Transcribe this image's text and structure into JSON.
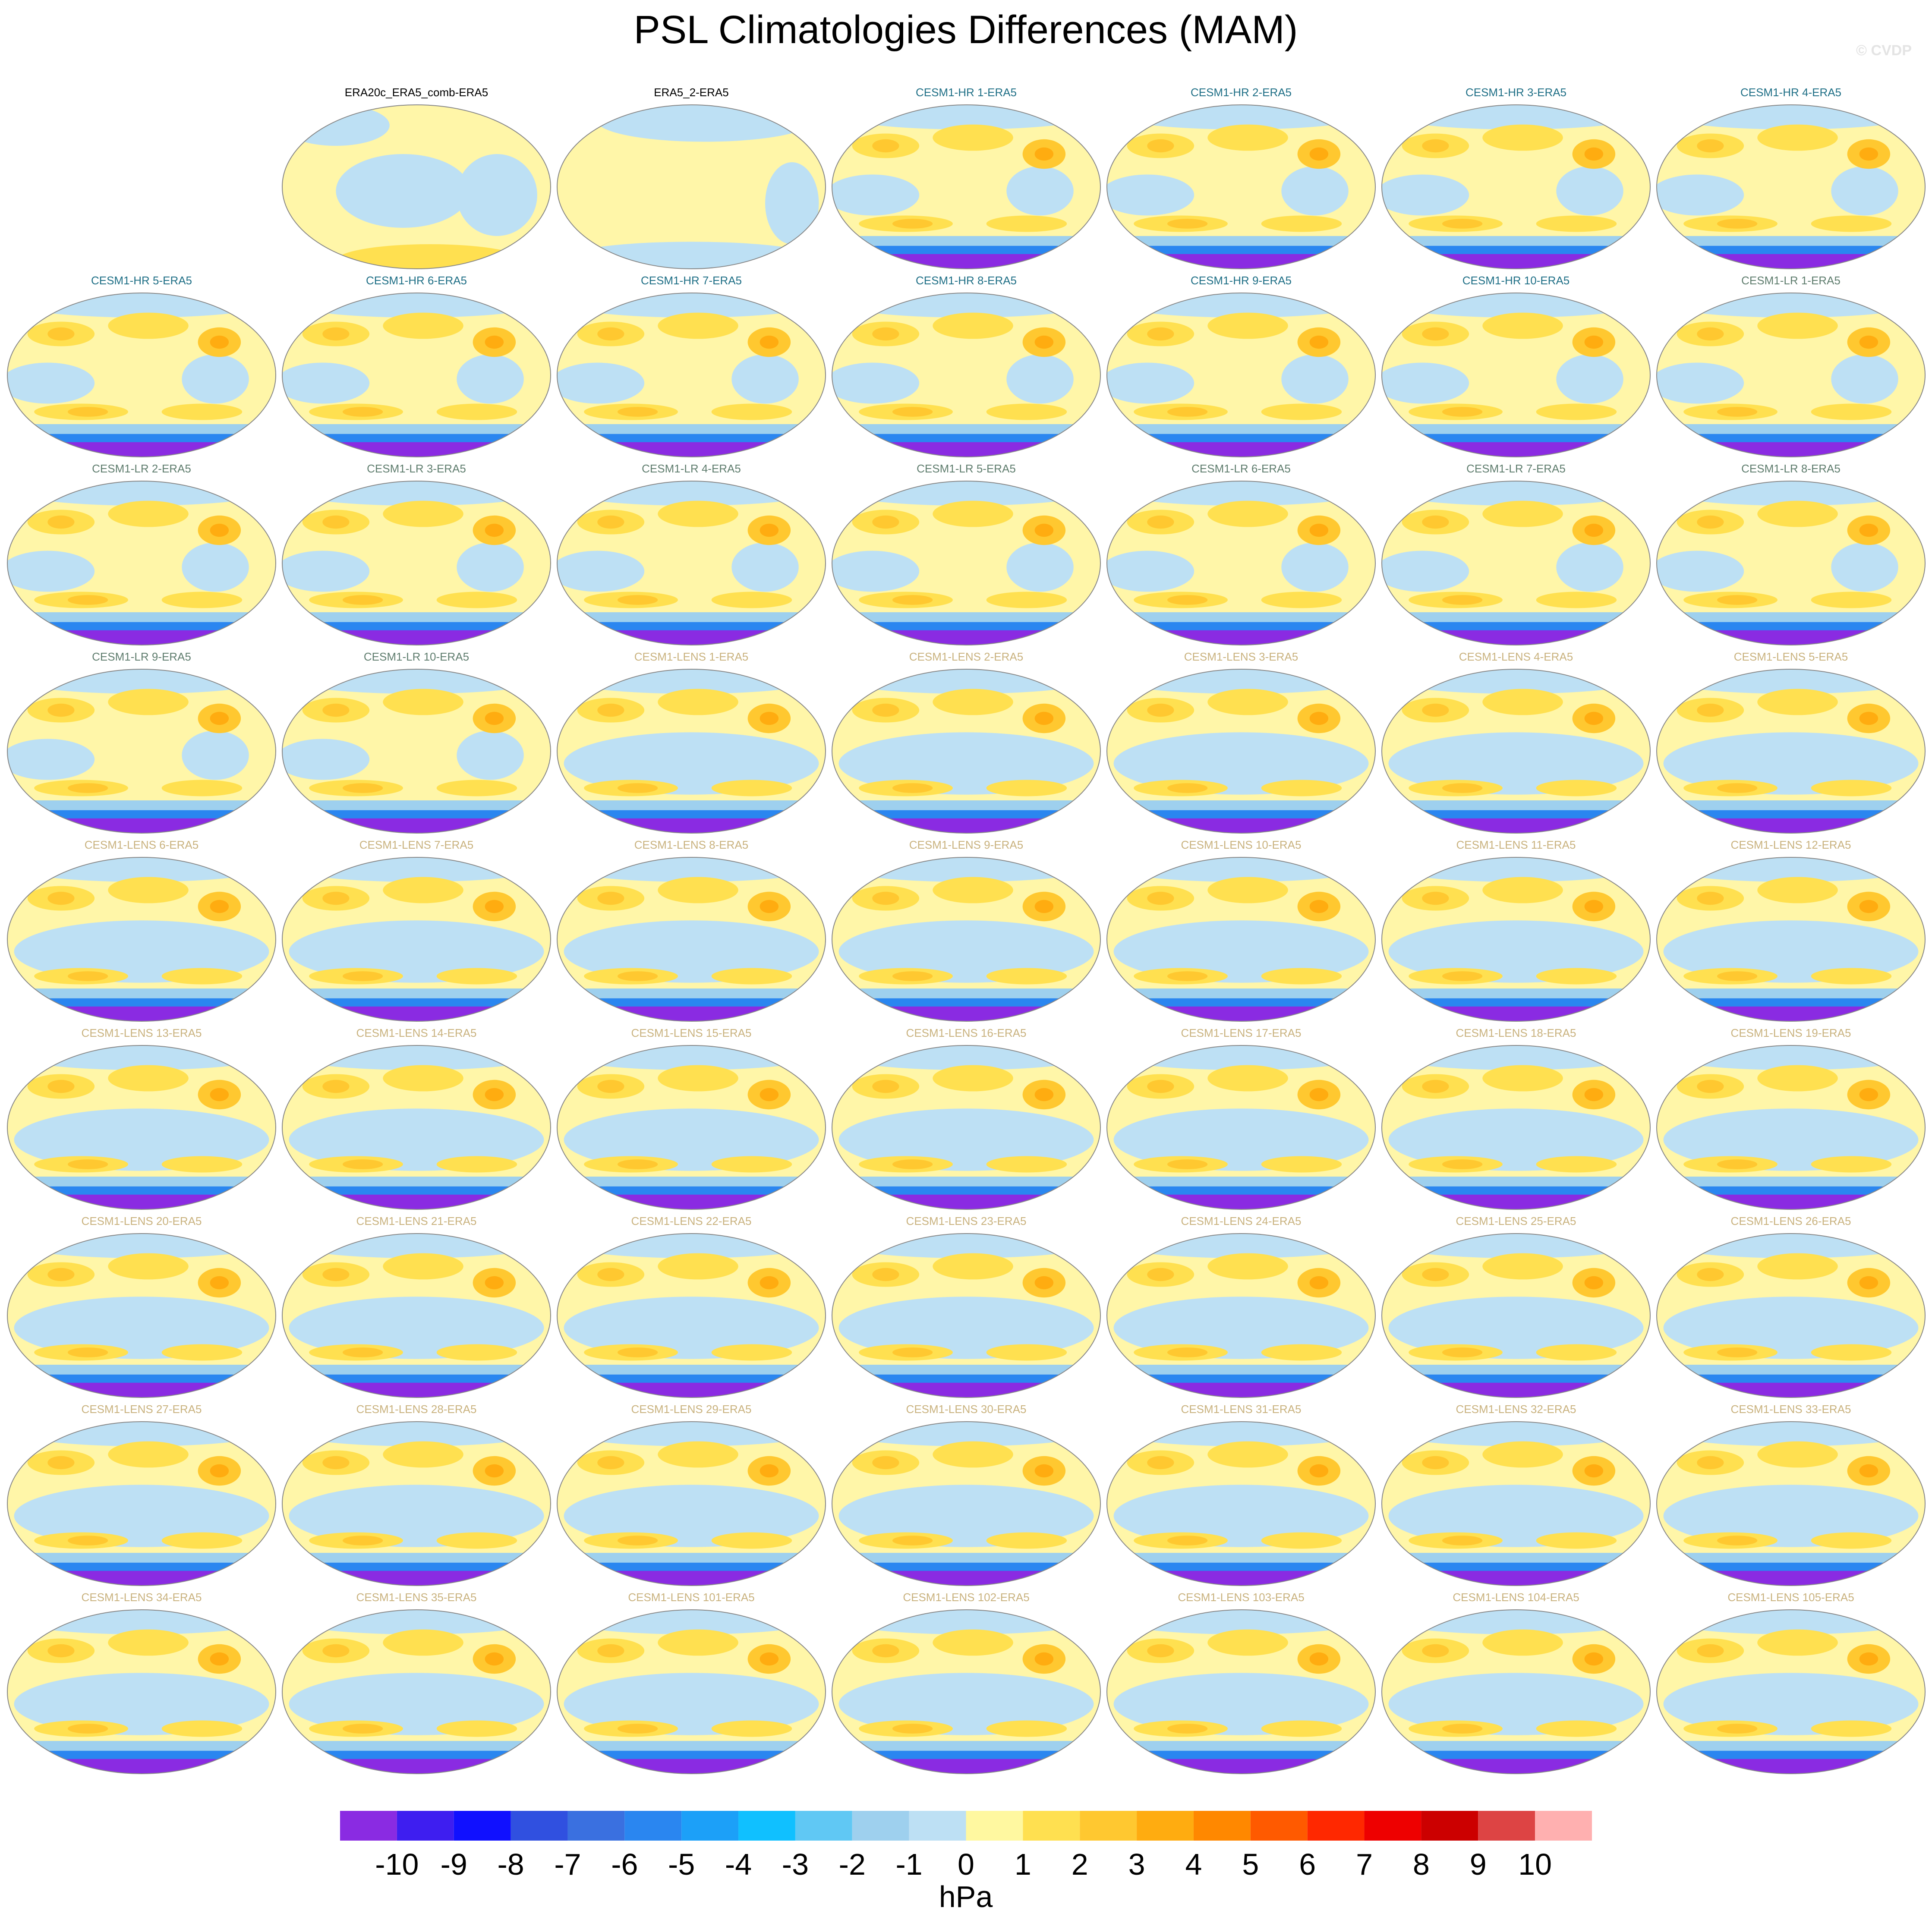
{
  "chart_data": {
    "type": "map_panels",
    "title": "PSL Climatologies Differences (MAM)",
    "watermark": "© CVDP",
    "panels": [
      {
        "title": "ERA20c_ERA5_comb-ERA5",
        "color": "#000000"
      },
      {
        "title": "ERA5_2-ERA5",
        "color": "#000000"
      },
      {
        "title": "CESM1-HR 1-ERA5",
        "color": "#1f6f86"
      },
      {
        "title": "CESM1-HR 2-ERA5",
        "color": "#1f6f86"
      },
      {
        "title": "CESM1-HR 3-ERA5",
        "color": "#1f6f86"
      },
      {
        "title": "CESM1-HR 4-ERA5",
        "color": "#1f6f86"
      },
      {
        "title": "CESM1-HR 5-ERA5",
        "color": "#1f6f86"
      },
      {
        "title": "CESM1-HR 6-ERA5",
        "color": "#1f6f86"
      },
      {
        "title": "CESM1-HR 7-ERA5",
        "color": "#1f6f86"
      },
      {
        "title": "CESM1-HR 8-ERA5",
        "color": "#1f6f86"
      },
      {
        "title": "CESM1-HR 9-ERA5",
        "color": "#1f6f86"
      },
      {
        "title": "CESM1-HR 10-ERA5",
        "color": "#1f6f86"
      },
      {
        "title": "CESM1-LR 1-ERA5",
        "color": "#5f7d6e"
      },
      {
        "title": "CESM1-LR 2-ERA5",
        "color": "#5f7d6e"
      },
      {
        "title": "CESM1-LR 3-ERA5",
        "color": "#5f7d6e"
      },
      {
        "title": "CESM1-LR 4-ERA5",
        "color": "#5f7d6e"
      },
      {
        "title": "CESM1-LR 5-ERA5",
        "color": "#5f7d6e"
      },
      {
        "title": "CESM1-LR 6-ERA5",
        "color": "#5f7d6e"
      },
      {
        "title": "CESM1-LR 7-ERA5",
        "color": "#5f7d6e"
      },
      {
        "title": "CESM1-LR 8-ERA5",
        "color": "#5f7d6e"
      },
      {
        "title": "CESM1-LR 9-ERA5",
        "color": "#5f7d6e"
      },
      {
        "title": "CESM1-LR 10-ERA5",
        "color": "#5f7d6e"
      },
      {
        "title": "CESM1-LENS 1-ERA5",
        "color": "#c9b27e"
      },
      {
        "title": "CESM1-LENS 2-ERA5",
        "color": "#c9b27e"
      },
      {
        "title": "CESM1-LENS 3-ERA5",
        "color": "#c9b27e"
      },
      {
        "title": "CESM1-LENS 4-ERA5",
        "color": "#c9b27e"
      },
      {
        "title": "CESM1-LENS 5-ERA5",
        "color": "#c9b27e"
      },
      {
        "title": "CESM1-LENS 6-ERA5",
        "color": "#c9b27e"
      },
      {
        "title": "CESM1-LENS 7-ERA5",
        "color": "#c9b27e"
      },
      {
        "title": "CESM1-LENS 8-ERA5",
        "color": "#c9b27e"
      },
      {
        "title": "CESM1-LENS 9-ERA5",
        "color": "#c9b27e"
      },
      {
        "title": "CESM1-LENS 10-ERA5",
        "color": "#c9b27e"
      },
      {
        "title": "CESM1-LENS 11-ERA5",
        "color": "#c9b27e"
      },
      {
        "title": "CESM1-LENS 12-ERA5",
        "color": "#c9b27e"
      },
      {
        "title": "CESM1-LENS 13-ERA5",
        "color": "#c9b27e"
      },
      {
        "title": "CESM1-LENS 14-ERA5",
        "color": "#c9b27e"
      },
      {
        "title": "CESM1-LENS 15-ERA5",
        "color": "#c9b27e"
      },
      {
        "title": "CESM1-LENS 16-ERA5",
        "color": "#c9b27e"
      },
      {
        "title": "CESM1-LENS 17-ERA5",
        "color": "#c9b27e"
      },
      {
        "title": "CESM1-LENS 18-ERA5",
        "color": "#c9b27e"
      },
      {
        "title": "CESM1-LENS 19-ERA5",
        "color": "#c9b27e"
      },
      {
        "title": "CESM1-LENS 20-ERA5",
        "color": "#c9b27e"
      },
      {
        "title": "CESM1-LENS 21-ERA5",
        "color": "#c9b27e"
      },
      {
        "title": "CESM1-LENS 22-ERA5",
        "color": "#c9b27e"
      },
      {
        "title": "CESM1-LENS 23-ERA5",
        "color": "#c9b27e"
      },
      {
        "title": "CESM1-LENS 24-ERA5",
        "color": "#c9b27e"
      },
      {
        "title": "CESM1-LENS 25-ERA5",
        "color": "#c9b27e"
      },
      {
        "title": "CESM1-LENS 26-ERA5",
        "color": "#c9b27e"
      },
      {
        "title": "CESM1-LENS 27-ERA5",
        "color": "#c9b27e"
      },
      {
        "title": "CESM1-LENS 28-ERA5",
        "color": "#c9b27e"
      },
      {
        "title": "CESM1-LENS 29-ERA5",
        "color": "#c9b27e"
      },
      {
        "title": "CESM1-LENS 30-ERA5",
        "color": "#c9b27e"
      },
      {
        "title": "CESM1-LENS 31-ERA5",
        "color": "#c9b27e"
      },
      {
        "title": "CESM1-LENS 32-ERA5",
        "color": "#c9b27e"
      },
      {
        "title": "CESM1-LENS 33-ERA5",
        "color": "#c9b27e"
      },
      {
        "title": "CESM1-LENS 34-ERA5",
        "color": "#c9b27e"
      },
      {
        "title": "CESM1-LENS 35-ERA5",
        "color": "#c9b27e"
      },
      {
        "title": "CESM1-LENS 101-ERA5",
        "color": "#c9b27e"
      },
      {
        "title": "CESM1-LENS 102-ERA5",
        "color": "#c9b27e"
      },
      {
        "title": "CESM1-LENS 103-ERA5",
        "color": "#c9b27e"
      },
      {
        "title": "CESM1-LENS 104-ERA5",
        "color": "#c9b27e"
      },
      {
        "title": "CESM1-LENS 105-ERA5",
        "color": "#c9b27e"
      }
    ],
    "colorbar": {
      "colors": [
        "#8a2be2",
        "#3e1ef0",
        "#1010ff",
        "#3050e0",
        "#3a70e0",
        "#2a86f0",
        "#1ca0f8",
        "#10c0ff",
        "#60c8f4",
        "#9ed0ee",
        "#bde0f4",
        "#fff8a0",
        "#ffe050",
        "#ffc830",
        "#ffac10",
        "#ff8800",
        "#ff5a00",
        "#ff2800",
        "#ee0000",
        "#cc0000",
        "#dd4444",
        "#ffb0b0"
      ],
      "ticks": [
        -10,
        -9,
        -8,
        -7,
        -6,
        -5,
        -4,
        -3,
        -2,
        -1,
        0,
        1,
        2,
        3,
        4,
        5,
        6,
        7,
        8,
        9,
        10
      ],
      "label": "hPa"
    }
  }
}
